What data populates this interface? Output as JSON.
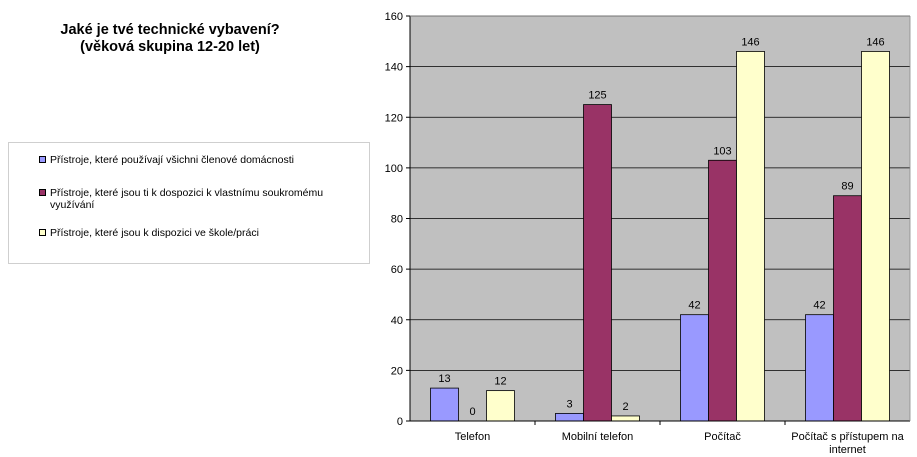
{
  "chart_data": {
    "type": "bar",
    "title": [
      "Jaké je tvé technické vybavení?",
      "(věková skupina 12-20 let)"
    ],
    "categories": [
      [
        "Telefon"
      ],
      [
        "Mobilní telefon"
      ],
      [
        "Počítač"
      ],
      [
        "Počítač s přístupem na",
        "internet"
      ]
    ],
    "series": [
      {
        "name": "Přístroje, které používají všichni členové domácnosti",
        "color": "#9999ff",
        "values": [
          13,
          3,
          42,
          42
        ]
      },
      {
        "name": "Přístroje, které jsou ti k dospozici k vlastnímu soukromému využívání",
        "color": "#993366",
        "values": [
          0,
          125,
          103,
          89
        ]
      },
      {
        "name": "Přístroje, které jsou k dispozici ve škole/práci",
        "color": "#ffffcc",
        "values": [
          12,
          2,
          146,
          146
        ]
      }
    ],
    "ylim": [
      0,
      160
    ],
    "yticks": [
      0,
      20,
      40,
      60,
      80,
      100,
      120,
      140,
      160
    ],
    "grid": true,
    "legend_position": "left",
    "plot_background": "#c0c0c0"
  }
}
